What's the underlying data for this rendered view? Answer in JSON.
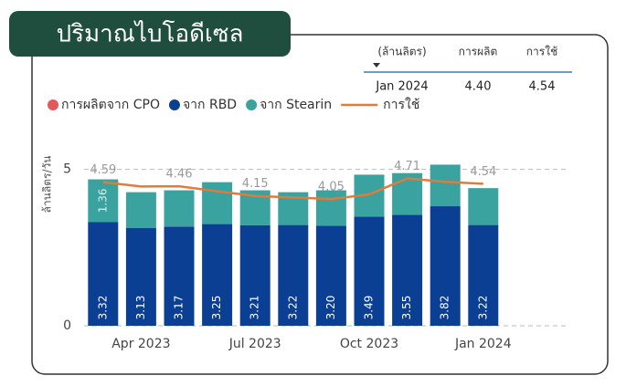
{
  "chart_data": {
    "type": "bar",
    "title": "ปริมาณไบโอดีเซล",
    "y_label": "ล้านลิตร/วัน",
    "categories": [
      null,
      "Apr 2023",
      null,
      null,
      "Jul 2023",
      null,
      null,
      "Oct 2023",
      null,
      null,
      "Jan 2024"
    ],
    "series": [
      {
        "name": "การผลิตจาก CPO",
        "color": "#e05a5a",
        "values": [
          0,
          0,
          0,
          0,
          0,
          0,
          0,
          0,
          0,
          0,
          0
        ]
      },
      {
        "name": "จาก RBD",
        "color": "#0b3f94",
        "values": [
          3.32,
          3.13,
          3.17,
          3.25,
          3.21,
          3.22,
          3.2,
          3.49,
          3.55,
          3.82,
          3.22
        ],
        "value_labels": [
          "3.32",
          "3.13",
          "3.17",
          "3.25",
          "3.21",
          "3.22",
          "3.20",
          "3.49",
          "3.55",
          "3.82",
          "3.22"
        ]
      },
      {
        "name": "จาก Stearin",
        "color": "#3aa39f",
        "values": [
          1.36,
          1.14,
          1.16,
          1.34,
          1.12,
          1.05,
          1.13,
          1.34,
          1.33,
          1.33,
          1.18
        ],
        "value_labels": [
          "1.36",
          null,
          null,
          null,
          null,
          null,
          null,
          null,
          null,
          null,
          null
        ]
      },
      {
        "name": "การใช้",
        "color": "#e07b3c",
        "type": "line",
        "values": [
          4.59,
          4.45,
          4.46,
          4.3,
          4.15,
          4.1,
          4.05,
          4.2,
          4.71,
          4.6,
          4.54
        ],
        "value_labels": [
          "4.59",
          null,
          "4.46",
          null,
          "4.15",
          null,
          "4.05",
          null,
          "4.71",
          null,
          "4.54"
        ]
      }
    ],
    "ylim": [
      0,
      5.6
    ],
    "yticks": [
      0,
      5
    ],
    "grid": true
  },
  "table": {
    "headers": [
      "(ล้านลิตร)",
      "การผลิต",
      "การใช้"
    ],
    "rows": [
      [
        "Jan 2024",
        "4.40",
        "4.54"
      ]
    ]
  }
}
